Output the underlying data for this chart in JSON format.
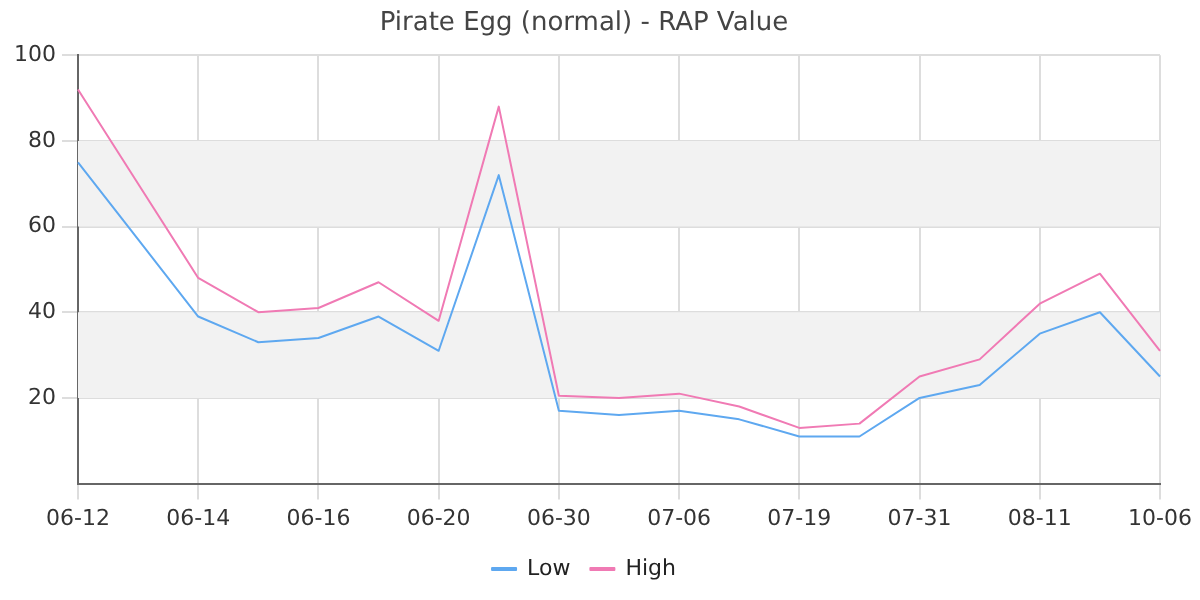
{
  "chart_data": {
    "type": "line",
    "title": "Pirate Egg (normal) - RAP Value",
    "categories": [
      "06-12",
      null,
      "06-14",
      null,
      "06-16",
      null,
      "06-20",
      null,
      "06-30",
      null,
      "07-06",
      null,
      "07-19",
      null,
      "07-31",
      null,
      "08-11",
      null,
      "10-06"
    ],
    "series": [
      {
        "name": "Low",
        "color": "#5ea8f0",
        "values": [
          75,
          57,
          39,
          33,
          34,
          39,
          31,
          72,
          17,
          16,
          17,
          15,
          11,
          11,
          20,
          23,
          35,
          40,
          25
        ]
      },
      {
        "name": "High",
        "color": "#f07ab4",
        "values": [
          92,
          70,
          48,
          40,
          41,
          47,
          38,
          88,
          20.5,
          20,
          21,
          18,
          13,
          14,
          25,
          29,
          42,
          49,
          31
        ]
      }
    ],
    "ylim": [
      0,
      100
    ],
    "yticks": [
      20,
      40,
      60,
      80,
      100
    ],
    "bands": [
      {
        "axis": "y",
        "from": 20,
        "to": 40,
        "color": "#f2f2f2"
      },
      {
        "axis": "y",
        "from": 60,
        "to": 80,
        "color": "#f2f2f2"
      }
    ],
    "grid": true,
    "legend": "bottom",
    "marker": "none",
    "line_style": "solid"
  }
}
